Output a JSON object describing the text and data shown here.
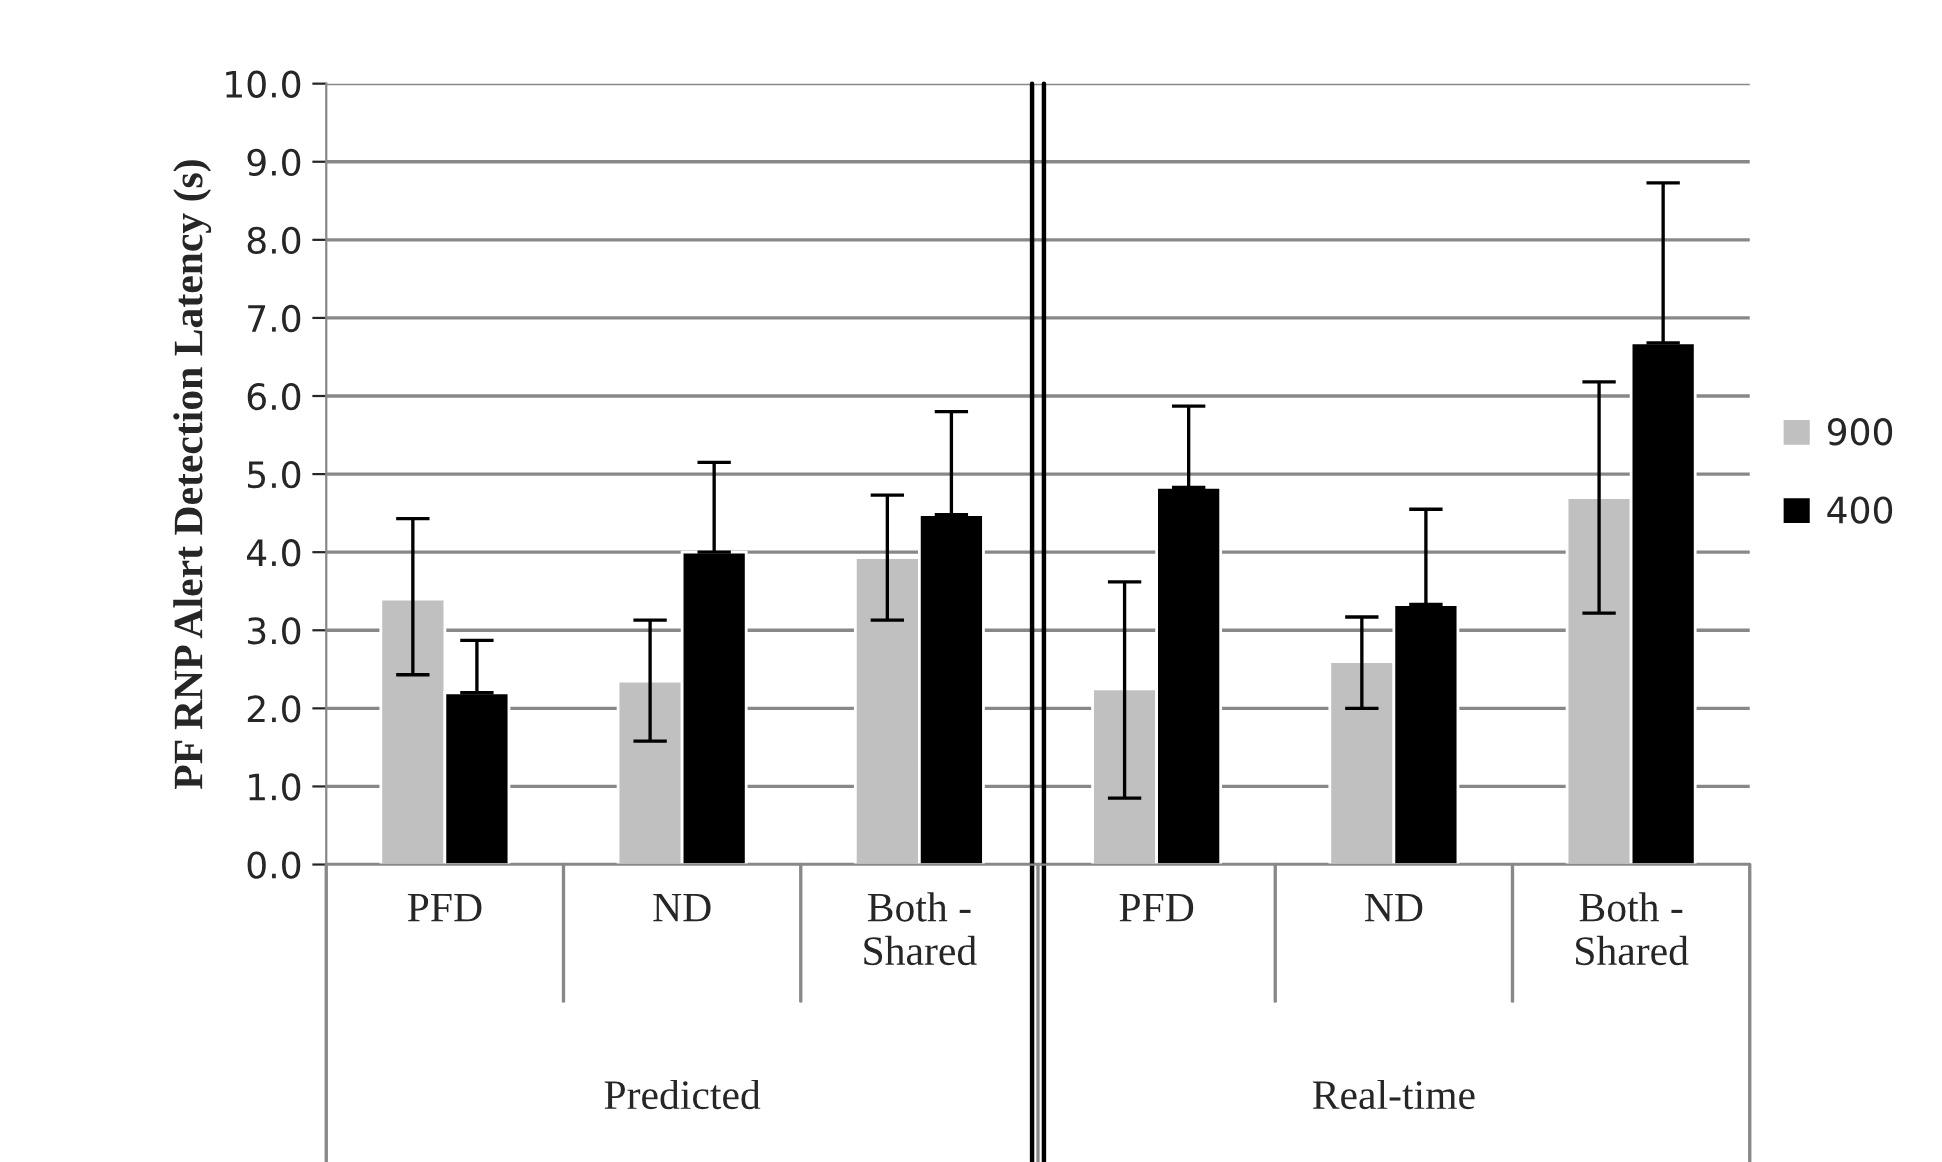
{
  "chart_data": {
    "type": "bar",
    "ylabel": "PF RNP Alert Detection Latency (s)",
    "categories": [
      "PFD",
      "ND",
      "Both -\nShared",
      "PFD",
      "ND",
      "Both -\nShared"
    ],
    "series": [
      {
        "name": "900",
        "color": "#c0c0c0",
        "values": [
          3.4,
          2.35,
          3.93,
          2.25,
          2.6,
          4.7
        ],
        "errors": [
          [
            2.43,
            4.43
          ],
          [
            1.58,
            3.13
          ],
          [
            3.13,
            4.73
          ],
          [
            0.85,
            3.62
          ],
          [
            2.0,
            3.17
          ],
          [
            3.22,
            6.18
          ]
        ]
      },
      {
        "name": "400",
        "color": "#000000",
        "values": [
          2.2,
          4.0,
          4.48,
          4.83,
          3.33,
          6.68
        ],
        "errors": [
          [
            2.2,
            2.87
          ],
          [
            4.0,
            5.15
          ],
          [
            4.48,
            5.8
          ],
          [
            4.83,
            5.87
          ],
          [
            3.33,
            4.55
          ],
          [
            6.68,
            8.73
          ]
        ]
      }
    ],
    "annotations": [
      "Predicted",
      "Real-time"
    ],
    "ylim": [
      0,
      10
    ],
    "yticks": [
      {
        "value": 0,
        "label": "0.0"
      },
      {
        "value": 1,
        "label": "1.0"
      },
      {
        "value": 2,
        "label": "2.0"
      },
      {
        "value": 3,
        "label": "3.0"
      },
      {
        "value": 4,
        "label": "4.0"
      },
      {
        "value": 5,
        "label": "5.0"
      },
      {
        "value": 6,
        "label": "6.0"
      },
      {
        "value": 7,
        "label": "7.0"
      },
      {
        "value": 8,
        "label": "8.0"
      },
      {
        "value": 9,
        "label": "9.0"
      },
      {
        "value": 10,
        "label": "10.0"
      }
    ],
    "grid": "y",
    "legend": "right"
  }
}
